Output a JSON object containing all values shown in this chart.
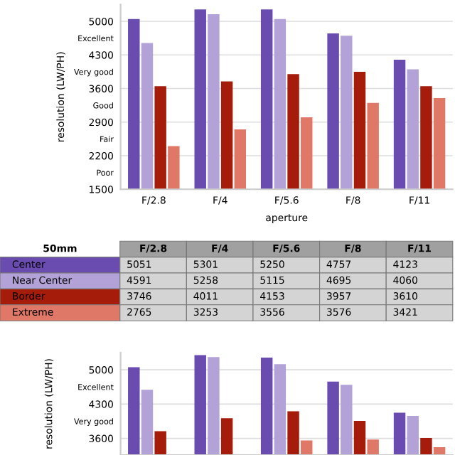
{
  "chart_data": [
    {
      "type": "bar",
      "ylabel": "resolution (LW/PH)",
      "xlabel": "aperture",
      "categories": [
        "F/2.8",
        "F/4",
        "F/5.6",
        "F/8",
        "F/11"
      ],
      "series": [
        {
          "color": "#6a4bb0",
          "values": [
            5050,
            5250,
            5250,
            4750,
            4200
          ]
        },
        {
          "color": "#b3a2d8",
          "values": [
            4550,
            5150,
            5050,
            4700,
            4000
          ]
        },
        {
          "color": "#a51c0a",
          "values": [
            3650,
            3750,
            3900,
            3950,
            3650
          ]
        },
        {
          "color": "#e07868",
          "values": [
            2400,
            2750,
            3000,
            3300,
            3400
          ]
        }
      ],
      "ylim": [
        1500,
        5350
      ],
      "yticks": [
        1500,
        {
          "value": 1850,
          "label": "Poor"
        },
        2200,
        {
          "value": 2550,
          "label": "Fair"
        },
        2900,
        {
          "value": 3250,
          "label": "Good"
        },
        3600,
        {
          "value": 3950,
          "label": "Very good"
        },
        4300,
        {
          "value": 4650,
          "label": "Excellent"
        },
        5000
      ],
      "grid": "y",
      "legend": false
    },
    {
      "type": "bar",
      "ylabel": "resolution (LW/PH)",
      "legend_title": "50mm",
      "categories": [
        "F/2.8",
        "F/4",
        "F/5.6",
        "F/8",
        "F/11"
      ],
      "series": [
        {
          "name": "Center",
          "color": "#6a4bb0",
          "values": [
            5051,
            5301,
            5250,
            4757,
            4123
          ],
          "value_labels": [
            "5051",
            "5301",
            "5250",
            "4757",
            "4123"
          ]
        },
        {
          "name": "Near Center",
          "color": "#b3a2d8",
          "values": [
            4591,
            5258,
            5115,
            4695,
            4060
          ],
          "value_labels": [
            "4591",
            "5258",
            "5115",
            "4695",
            "4060"
          ]
        },
        {
          "name": "Border",
          "color": "#a51c0a",
          "values": [
            3746,
            4011,
            4153,
            3957,
            3610
          ],
          "value_labels": [
            "3746",
            "4011",
            "4153",
            "3957",
            "3610"
          ]
        },
        {
          "name": "Extreme",
          "color": "#e07868",
          "values": [
            null,
            null,
            3556,
            3576,
            3421
          ],
          "value_labels": [
            "2765",
            "3253",
            "3556",
            "3576",
            "3421"
          ]
        }
      ],
      "ylim": [
        3260,
        5350
      ],
      "yticks": [
        3600,
        {
          "value": 3950,
          "label": "Very good"
        },
        4300,
        {
          "value": 4650,
          "label": "Excellent"
        },
        5000
      ],
      "tick_labels": "y",
      "grid": "y",
      "legend": false
    }
  ]
}
